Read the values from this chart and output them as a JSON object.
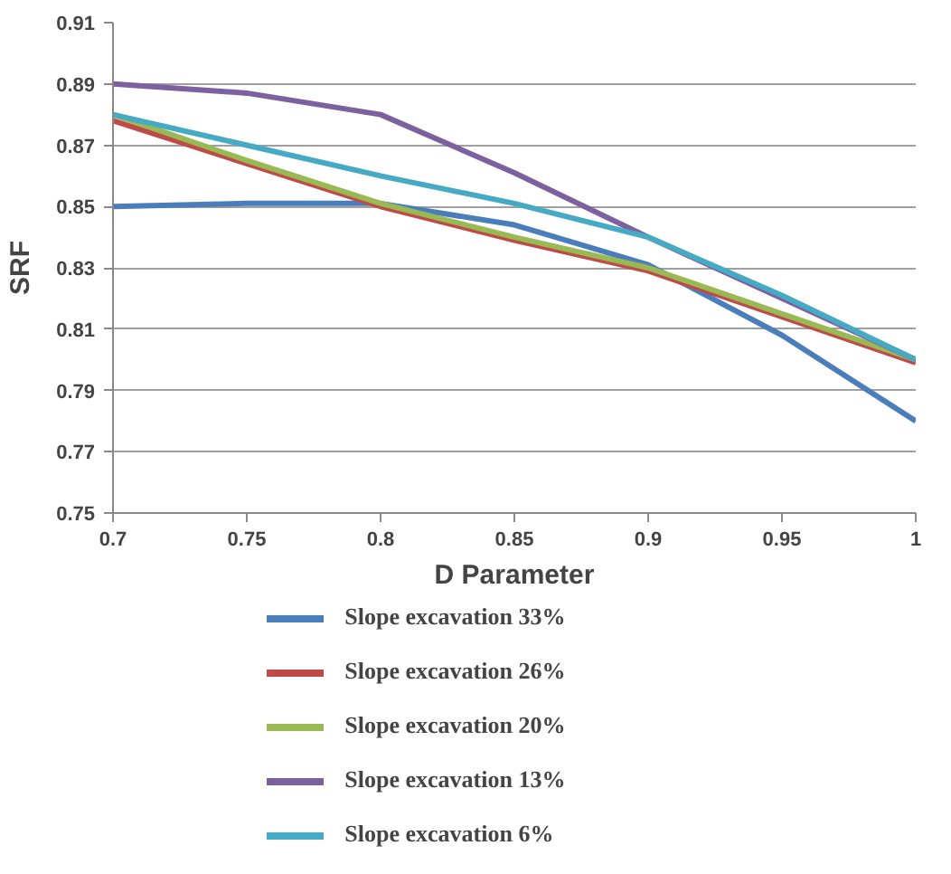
{
  "chart_data": {
    "type": "line",
    "xlabel": "D Parameter",
    "ylabel": "SRF",
    "x": [
      0.7,
      0.75,
      0.8,
      0.85,
      0.9,
      0.95,
      1.0
    ],
    "series": [
      {
        "name": "Slope excavation 33%",
        "color": "#4a7ebb",
        "values": [
          0.85,
          0.851,
          0.851,
          0.844,
          0.831,
          0.808,
          0.78
        ]
      },
      {
        "name": "Slope excavation 26%",
        "color": "#be4b48",
        "values": [
          0.878,
          0.864,
          0.85,
          0.839,
          0.829,
          0.814,
          0.799
        ]
      },
      {
        "name": "Slope excavation 20%",
        "color": "#98b954",
        "values": [
          0.88,
          0.865,
          0.851,
          0.84,
          0.83,
          0.815,
          0.8
        ]
      },
      {
        "name": "Slope excavation 13%",
        "color": "#7d60a0",
        "values": [
          0.89,
          0.887,
          0.88,
          0.861,
          0.84,
          0.82,
          0.8
        ]
      },
      {
        "name": "Slope excavation 6%",
        "color": "#46aac5",
        "values": [
          0.88,
          0.87,
          0.86,
          0.851,
          0.84,
          0.821,
          0.8
        ]
      }
    ],
    "xlim": [
      0.7,
      1.0
    ],
    "xticks": [
      0.7,
      0.75,
      0.8,
      0.85,
      0.9,
      0.95,
      1
    ],
    "ylim": [
      0.75,
      0.91
    ],
    "yticks": [
      0.75,
      0.77,
      0.79,
      0.81,
      0.83,
      0.85,
      0.87,
      0.89,
      0.91
    ],
    "grid": "y",
    "legend": "bottom",
    "marker": "none",
    "line_style": "solid"
  }
}
